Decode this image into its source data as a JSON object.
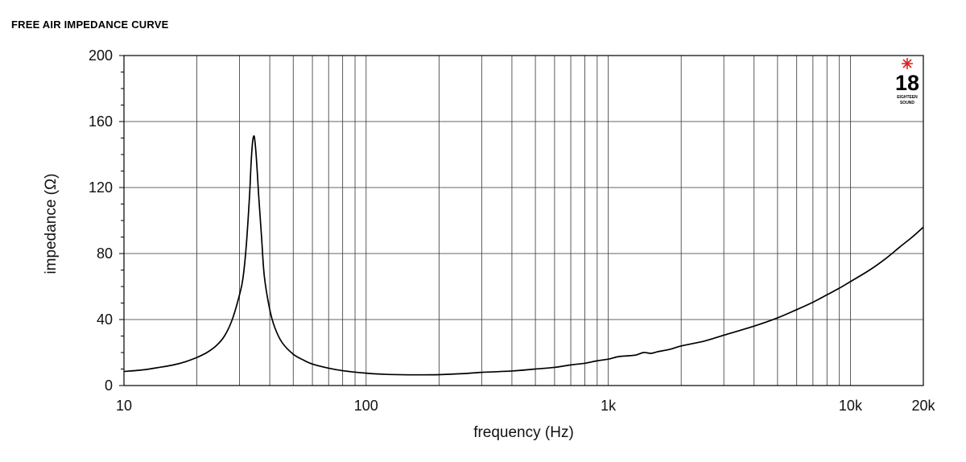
{
  "chart_data": {
    "type": "line",
    "title": "FREE AIR IMPEDANCE CURVE",
    "xlabel": "frequency (Hz)",
    "ylabel": "impedance (Ω)",
    "x_scale": "log",
    "xlim": [
      10,
      20000
    ],
    "ylim": [
      0,
      200
    ],
    "grid": true,
    "x_ticks": [
      10,
      100,
      1000,
      10000,
      20000
    ],
    "x_tick_labels": [
      "10",
      "100",
      "1k",
      "10k",
      "20k"
    ],
    "y_ticks": [
      0,
      40,
      80,
      120,
      160,
      200
    ],
    "y_tick_labels": [
      "0",
      "40",
      "80",
      "120",
      "160",
      "200"
    ],
    "series": [
      {
        "points": [
          [
            10,
            8.5
          ],
          [
            12,
            9.5
          ],
          [
            14,
            11
          ],
          [
            16,
            12.5
          ],
          [
            18,
            14.5
          ],
          [
            20,
            17
          ],
          [
            22,
            20
          ],
          [
            24,
            24
          ],
          [
            26,
            30
          ],
          [
            28,
            40
          ],
          [
            30,
            55
          ],
          [
            31,
            65
          ],
          [
            32,
            85
          ],
          [
            33,
            115
          ],
          [
            33.5,
            135
          ],
          [
            34,
            148
          ],
          [
            34.5,
            151
          ],
          [
            35,
            143
          ],
          [
            35.5,
            130
          ],
          [
            36,
            115
          ],
          [
            37,
            90
          ],
          [
            38,
            66
          ],
          [
            40,
            46
          ],
          [
            42,
            35
          ],
          [
            45,
            26
          ],
          [
            50,
            19
          ],
          [
            55,
            15.5
          ],
          [
            60,
            13
          ],
          [
            70,
            10.5
          ],
          [
            80,
            9
          ],
          [
            100,
            7.5
          ],
          [
            120,
            6.8
          ],
          [
            150,
            6.5
          ],
          [
            200,
            6.6
          ],
          [
            250,
            7.2
          ],
          [
            300,
            8
          ],
          [
            400,
            8.8
          ],
          [
            500,
            10
          ],
          [
            600,
            11
          ],
          [
            700,
            12.5
          ],
          [
            800,
            13.5
          ],
          [
            900,
            15
          ],
          [
            1000,
            16
          ],
          [
            1100,
            17.5
          ],
          [
            1200,
            18
          ],
          [
            1300,
            18.5
          ],
          [
            1400,
            20
          ],
          [
            1500,
            19.5
          ],
          [
            1600,
            20.5
          ],
          [
            1800,
            22
          ],
          [
            2000,
            24
          ],
          [
            2500,
            27
          ],
          [
            3000,
            30.5
          ],
          [
            4000,
            36
          ],
          [
            5000,
            41
          ],
          [
            6000,
            46
          ],
          [
            7000,
            50.5
          ],
          [
            8000,
            55
          ],
          [
            9000,
            59
          ],
          [
            10000,
            63
          ],
          [
            12000,
            70
          ],
          [
            14000,
            77
          ],
          [
            16000,
            84
          ],
          [
            18000,
            90
          ],
          [
            20000,
            96
          ]
        ]
      }
    ]
  },
  "logo": {
    "number": "18",
    "line1": "EIGHTEEN",
    "line2": "SOUND",
    "star_color": "#e0201e"
  }
}
